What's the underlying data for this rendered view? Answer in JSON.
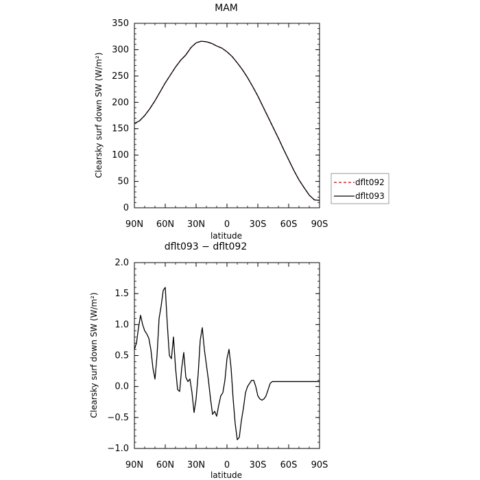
{
  "chart_data": [
    {
      "type": "line",
      "title": "MAM",
      "xlabel": "latitude",
      "ylabel": "Clearsky surf down SW (W/m²)",
      "xlim": [
        90,
        -90
      ],
      "ylim": [
        0,
        350
      ],
      "yticks": [
        0,
        50,
        100,
        150,
        200,
        250,
        300,
        350
      ],
      "xticks": [
        90,
        60,
        30,
        0,
        -30,
        -60,
        -90
      ],
      "xticklabels": [
        "90N",
        "60N",
        "30N",
        "0",
        "30S",
        "60S",
        "90S"
      ],
      "legend_position": "right",
      "series": [
        {
          "name": "dflt092",
          "color": "#cc0000",
          "dash": "dashed",
          "x": [
            90,
            85,
            80,
            75,
            70,
            65,
            60,
            55,
            50,
            45,
            40,
            35,
            30,
            25,
            20,
            15,
            10,
            5,
            0,
            -5,
            -10,
            -15,
            -20,
            -25,
            -30,
            -35,
            -40,
            -45,
            -50,
            -55,
            -60,
            -65,
            -70,
            -75,
            -80,
            -85,
            -90
          ],
          "values": [
            160,
            165,
            175,
            188,
            203,
            220,
            237,
            252,
            267,
            280,
            290,
            304,
            313,
            316,
            315,
            312,
            307,
            303,
            296,
            287,
            275,
            262,
            247,
            230,
            212,
            192,
            172,
            152,
            132,
            111,
            91,
            71,
            53,
            38,
            24,
            15,
            14
          ]
        },
        {
          "name": "dflt093",
          "color": "#000000",
          "dash": "solid",
          "x": [
            90,
            85,
            80,
            75,
            70,
            65,
            60,
            55,
            50,
            45,
            40,
            35,
            30,
            25,
            20,
            15,
            10,
            5,
            0,
            -5,
            -10,
            -15,
            -20,
            -25,
            -30,
            -35,
            -40,
            -45,
            -50,
            -55,
            -60,
            -65,
            -70,
            -75,
            -80,
            -85,
            -90
          ],
          "values": [
            160,
            165,
            175,
            188,
            203,
            220,
            237,
            252,
            267,
            280,
            290,
            304,
            313,
            316,
            315,
            312,
            307,
            303,
            296,
            287,
            275,
            262,
            247,
            230,
            212,
            192,
            172,
            152,
            132,
            111,
            91,
            71,
            53,
            38,
            24,
            15,
            14
          ]
        }
      ]
    },
    {
      "type": "line",
      "title": "dflt093 − dflt092",
      "xlabel": "latitude",
      "ylabel": "Clearsky surf down SW (W/m²)",
      "xlim": [
        90,
        -90
      ],
      "ylim": [
        -1.0,
        2.0
      ],
      "yticks": [
        -1.0,
        -0.5,
        0.0,
        0.5,
        1.0,
        1.5,
        2.0
      ],
      "yticklabels": [
        "−1.0",
        "−0.5",
        "0.0",
        "0.5",
        "1.0",
        "1.5",
        "2.0"
      ],
      "xticks": [
        90,
        60,
        30,
        0,
        -30,
        -60,
        -90
      ],
      "xticklabels": [
        "90N",
        "60N",
        "30N",
        "0",
        "30S",
        "60S",
        "90S"
      ],
      "series": [
        {
          "color": "#000000",
          "x": [
            90,
            88,
            86,
            84,
            82,
            80,
            78,
            76,
            74,
            72,
            70,
            68,
            66,
            64,
            62,
            60,
            58,
            56,
            54,
            52,
            50,
            48,
            46,
            44,
            42,
            40,
            38,
            36,
            34,
            32,
            30,
            28,
            26,
            24,
            22,
            20,
            18,
            16,
            14,
            12,
            10,
            8,
            6,
            4,
            2,
            0,
            -2,
            -4,
            -6,
            -8,
            -10,
            -12,
            -14,
            -16,
            -18,
            -20,
            -22,
            -24,
            -26,
            -28,
            -30,
            -32,
            -34,
            -36,
            -38,
            -40,
            -42,
            -44,
            -46,
            -48,
            -50,
            -52,
            -54,
            -56,
            -58,
            -60,
            -62,
            -64,
            -66,
            -68,
            -70,
            -72,
            -74,
            -76,
            -78,
            -80,
            -82,
            -84,
            -86,
            -88,
            -90
          ],
          "values": [
            0.6,
            0.7,
            0.95,
            1.15,
            1.0,
            0.9,
            0.85,
            0.78,
            0.6,
            0.3,
            0.12,
            0.5,
            1.1,
            1.3,
            1.55,
            1.6,
            1.0,
            0.5,
            0.45,
            0.8,
            0.3,
            -0.05,
            -0.08,
            0.3,
            0.55,
            0.15,
            0.08,
            0.12,
            -0.1,
            -0.42,
            -0.2,
            0.2,
            0.75,
            0.95,
            0.6,
            0.35,
            0.1,
            -0.2,
            -0.45,
            -0.4,
            -0.48,
            -0.3,
            -0.15,
            -0.1,
            0.1,
            0.45,
            0.6,
            0.3,
            -0.2,
            -0.6,
            -0.86,
            -0.82,
            -0.55,
            -0.35,
            -0.1,
            0.0,
            0.05,
            0.1,
            0.1,
            0.0,
            -0.15,
            -0.2,
            -0.22,
            -0.2,
            -0.15,
            -0.05,
            0.05,
            0.08,
            0.08,
            0.08,
            0.08,
            0.08,
            0.08,
            0.08,
            0.08,
            0.08,
            0.08,
            0.08,
            0.08,
            0.08,
            0.08,
            0.08,
            0.08,
            0.08,
            0.08,
            0.08,
            0.08,
            0.08,
            0.08,
            0.08,
            0.08
          ]
        }
      ]
    }
  ]
}
